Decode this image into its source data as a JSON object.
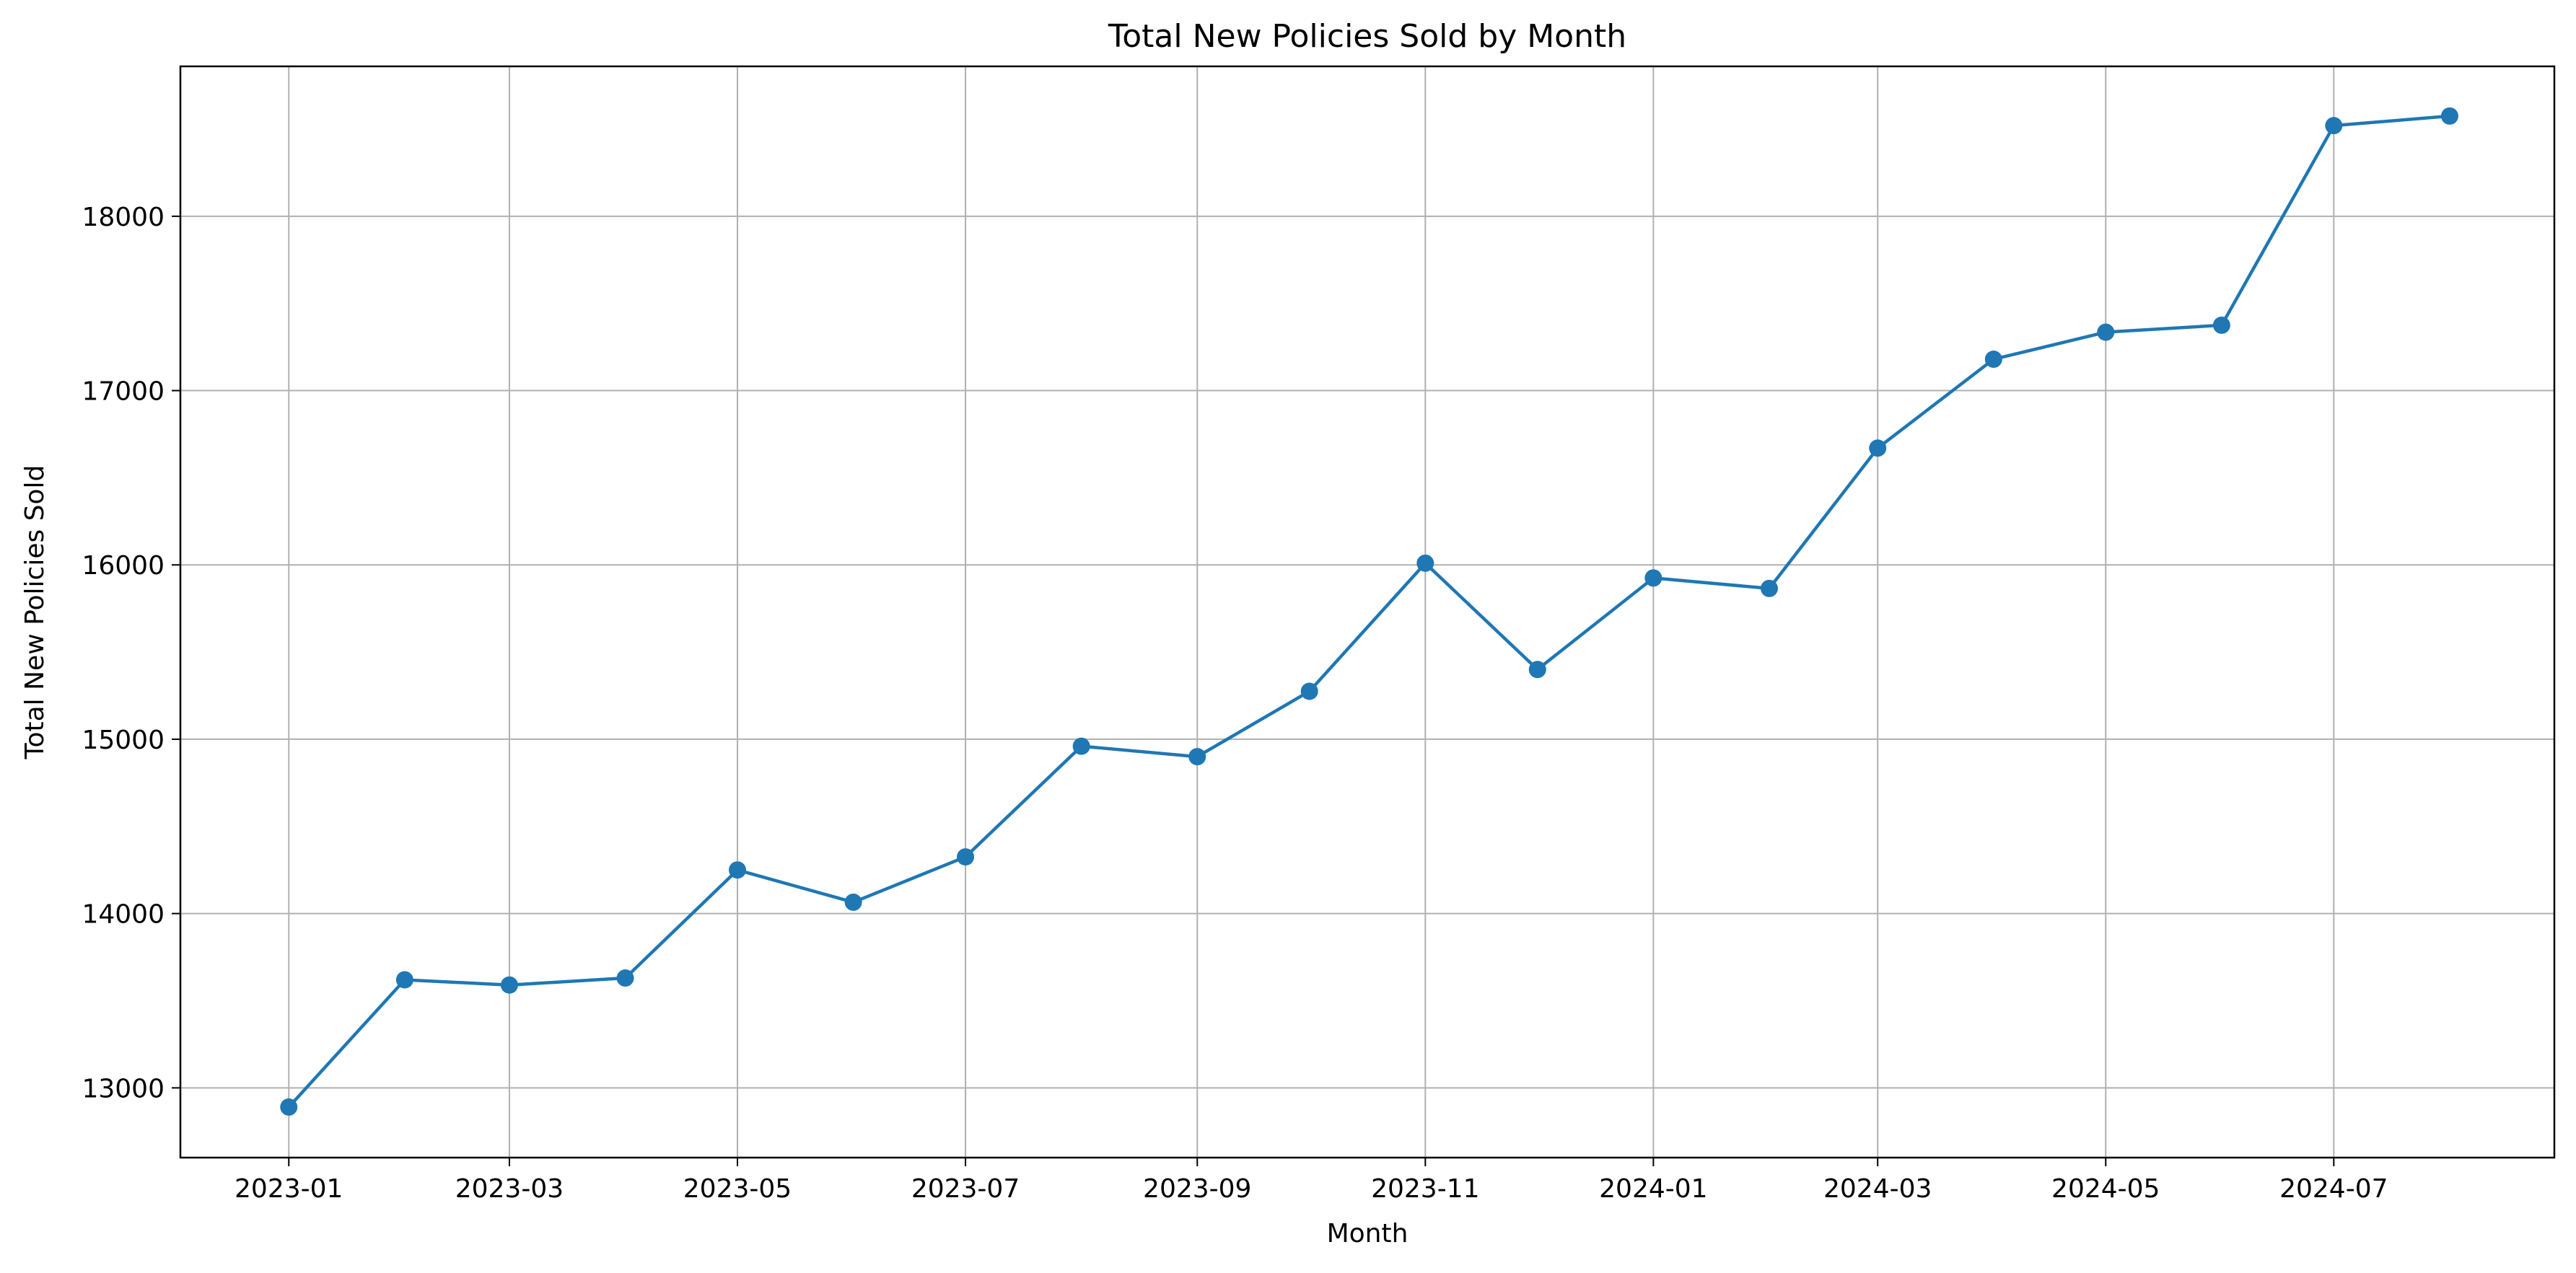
{
  "chart_data": {
    "type": "line",
    "title": "Total New Policies Sold by Month",
    "xlabel": "Month",
    "ylabel": "Total New Policies Sold",
    "x": [
      "2023-01",
      "2023-02",
      "2023-03",
      "2023-04",
      "2023-05",
      "2023-06",
      "2023-07",
      "2023-08",
      "2023-09",
      "2023-10",
      "2023-11",
      "2023-12",
      "2024-01",
      "2024-02",
      "2024-03",
      "2024-04",
      "2024-05",
      "2024-06",
      "2024-07",
      "2024-08"
    ],
    "series": [
      {
        "values": [
          12890,
          13620,
          13590,
          13630,
          14250,
          14065,
          14325,
          14960,
          14900,
          15275,
          16010,
          15400,
          15925,
          15865,
          16670,
          17180,
          17335,
          17375,
          18520,
          18575
        ],
        "color": "#1f77b4"
      }
    ],
    "x_ticks": [
      "2023-01",
      "2023-03",
      "2023-05",
      "2023-07",
      "2023-09",
      "2023-11",
      "2024-01",
      "2024-03",
      "2024-05",
      "2024-07"
    ],
    "y_ticks": [
      13000,
      14000,
      15000,
      16000,
      17000,
      18000
    ],
    "xlim": [
      "2022-12-03",
      "2024-08-29"
    ],
    "ylim": [
      12600,
      18860
    ],
    "grid": true,
    "legend": "none"
  }
}
